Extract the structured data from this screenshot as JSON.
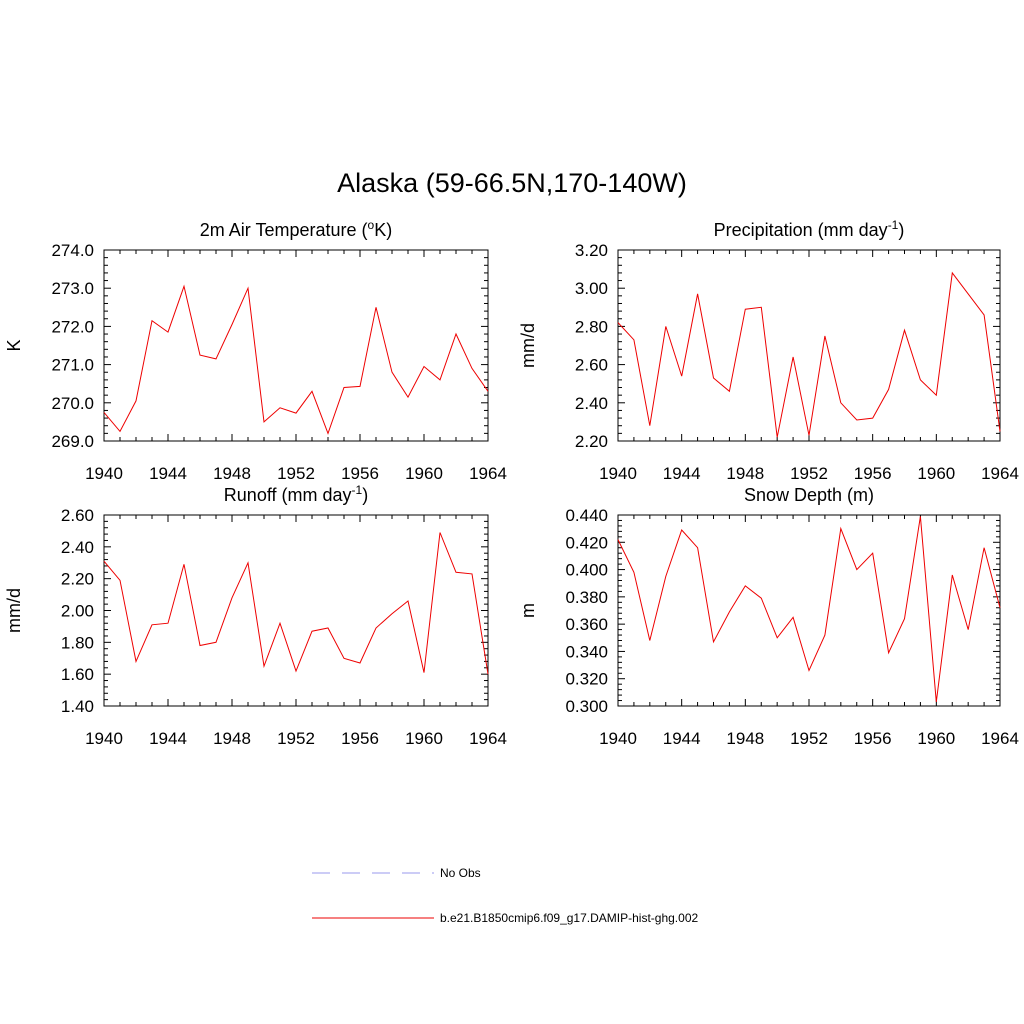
{
  "main_title": "Alaska (59-66.5N,170-140W)",
  "legend": [
    {
      "label": "No Obs",
      "color": "#9999ee",
      "dash": true
    },
    {
      "label": "b.e21.B1850cmip6.f09_g17.DAMIP-hist-ghg.002",
      "color": "#ee0000",
      "dash": false
    }
  ],
  "chart_data": [
    {
      "type": "line",
      "title": "2m Air Temperature (",
      "title_sup": "o",
      "title_after": "K)",
      "ylabel": "K",
      "xlim": [
        1940,
        1964
      ],
      "ylim": [
        269.0,
        274.0
      ],
      "xticks": [
        1940,
        1944,
        1948,
        1952,
        1956,
        1960,
        1964
      ],
      "yticks": [
        "269.0",
        "270.0",
        "271.0",
        "272.0",
        "273.0",
        "274.0"
      ],
      "x": [
        1940,
        1941,
        1942,
        1943,
        1944,
        1945,
        1946,
        1947,
        1948,
        1949,
        1950,
        1951,
        1952,
        1953,
        1954,
        1955,
        1956,
        1957,
        1958,
        1959,
        1960,
        1961,
        1962,
        1963,
        1964
      ],
      "series": [
        {
          "color": "#ee0000",
          "values": [
            269.75,
            269.25,
            270.05,
            272.15,
            271.85,
            273.05,
            271.25,
            271.15,
            272.05,
            273.0,
            269.5,
            269.87,
            269.73,
            270.3,
            269.2,
            270.4,
            270.43,
            272.5,
            270.8,
            270.15,
            270.95,
            270.6,
            271.8,
            270.9,
            270.3
          ]
        }
      ]
    },
    {
      "type": "line",
      "title": "Precipitation (mm day",
      "title_sup": "-1",
      "title_after": ")",
      "ylabel": "mm/d",
      "xlim": [
        1940,
        1964
      ],
      "ylim": [
        2.2,
        3.2
      ],
      "xticks": [
        1940,
        1944,
        1948,
        1952,
        1956,
        1960,
        1964
      ],
      "yticks": [
        "2.20",
        "2.40",
        "2.60",
        "2.80",
        "3.00",
        "3.20"
      ],
      "x": [
        1940,
        1941,
        1942,
        1943,
        1944,
        1945,
        1946,
        1947,
        1948,
        1949,
        1950,
        1951,
        1952,
        1953,
        1954,
        1955,
        1956,
        1957,
        1958,
        1959,
        1960,
        1961,
        1962,
        1963,
        1964
      ],
      "series": [
        {
          "color": "#ee0000",
          "values": [
            2.82,
            2.73,
            2.28,
            2.8,
            2.54,
            2.97,
            2.53,
            2.46,
            2.89,
            2.9,
            2.22,
            2.64,
            2.23,
            2.75,
            2.4,
            2.31,
            2.32,
            2.47,
            2.78,
            2.52,
            2.44,
            3.08,
            2.97,
            2.86,
            2.25
          ]
        }
      ]
    },
    {
      "type": "line",
      "title": "Runoff (mm day",
      "title_sup": "-1",
      "title_after": ")",
      "ylabel": "mm/d",
      "xlim": [
        1940,
        1964
      ],
      "ylim": [
        1.4,
        2.6
      ],
      "xticks": [
        1940,
        1944,
        1948,
        1952,
        1956,
        1960,
        1964
      ],
      "yticks": [
        "1.40",
        "1.60",
        "1.80",
        "2.00",
        "2.20",
        "2.40",
        "2.60"
      ],
      "x": [
        1940,
        1941,
        1942,
        1943,
        1944,
        1945,
        1946,
        1947,
        1948,
        1949,
        1950,
        1951,
        1952,
        1953,
        1954,
        1955,
        1956,
        1957,
        1958,
        1959,
        1960,
        1961,
        1962,
        1963,
        1964
      ],
      "series": [
        {
          "color": "#ee0000",
          "values": [
            2.31,
            2.19,
            1.68,
            1.91,
            1.92,
            2.29,
            1.78,
            1.8,
            2.08,
            2.3,
            1.65,
            1.92,
            1.62,
            1.87,
            1.89,
            1.7,
            1.67,
            1.89,
            1.98,
            2.06,
            1.61,
            2.49,
            2.24,
            2.23,
            1.6
          ]
        }
      ]
    },
    {
      "type": "line",
      "title": "Snow Depth (m)",
      "title_sup": "",
      "title_after": "",
      "ylabel": "m",
      "xlim": [
        1940,
        1964
      ],
      "ylim": [
        0.3,
        0.44
      ],
      "xticks": [
        1940,
        1944,
        1948,
        1952,
        1956,
        1960,
        1964
      ],
      "yticks": [
        "0.300",
        "0.320",
        "0.340",
        "0.360",
        "0.380",
        "0.400",
        "0.420",
        "0.440"
      ],
      "x": [
        1940,
        1941,
        1942,
        1943,
        1944,
        1945,
        1946,
        1947,
        1948,
        1949,
        1950,
        1951,
        1952,
        1953,
        1954,
        1955,
        1956,
        1957,
        1958,
        1959,
        1960,
        1961,
        1962,
        1963,
        1964
      ],
      "series": [
        {
          "color": "#ee0000",
          "values": [
            0.422,
            0.398,
            0.348,
            0.395,
            0.429,
            0.416,
            0.347,
            0.369,
            0.388,
            0.379,
            0.35,
            0.365,
            0.326,
            0.352,
            0.43,
            0.4,
            0.412,
            0.339,
            0.364,
            0.439,
            0.303,
            0.396,
            0.356,
            0.416,
            0.372
          ]
        }
      ]
    }
  ]
}
